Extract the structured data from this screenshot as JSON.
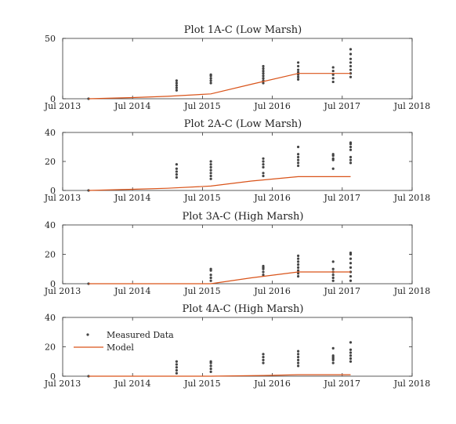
{
  "chart_data": [
    {
      "type": "scatter",
      "title": "Plot 1A-C (Low Marsh)",
      "x_ticks": [
        "Jul 2013",
        "Jul 2014",
        "Jul 2015",
        "Jul 2016",
        "Jul 2017",
        "Jul 2018"
      ],
      "ylim": [
        0,
        50
      ],
      "y_ticks": [
        "0",
        "50"
      ],
      "series": [
        {
          "kind": "measured",
          "color": "#444444",
          "points": [
            {
              "x": 2013.87,
              "y": [
                0
              ]
            },
            {
              "x": 2015.13,
              "y": [
                7,
                9,
                11,
                13,
                15
              ]
            },
            {
              "x": 2015.62,
              "y": [
                13,
                15,
                17,
                19,
                20
              ]
            },
            {
              "x": 2016.37,
              "y": [
                13,
                15,
                17,
                19,
                21,
                23,
                25,
                27
              ]
            },
            {
              "x": 2016.87,
              "y": [
                16,
                18,
                20,
                22,
                24,
                27,
                30
              ]
            },
            {
              "x": 2017.37,
              "y": [
                14,
                17,
                20,
                23,
                26
              ]
            },
            {
              "x": 2017.62,
              "y": [
                18,
                21,
                24,
                27,
                30,
                33,
                37,
                41
              ]
            }
          ]
        },
        {
          "kind": "model",
          "color": "#d95319",
          "x": [
            2013.87,
            2014.5,
            2015.0,
            2015.62,
            2016.2,
            2016.87,
            2017.3,
            2017.62
          ],
          "y": [
            0,
            1,
            2,
            4,
            12,
            21,
            21,
            21
          ]
        }
      ]
    },
    {
      "type": "scatter",
      "title": "Plot 2A-C (Low Marsh)",
      "x_ticks": [
        "Jul 2013",
        "Jul 2014",
        "Jul 2015",
        "Jul 2016",
        "Jul 2017",
        "Jul 2018"
      ],
      "ylim": [
        0,
        40
      ],
      "y_ticks": [
        "0",
        "20",
        "40"
      ],
      "series": [
        {
          "kind": "measured",
          "color": "#444444",
          "points": [
            {
              "x": 2013.87,
              "y": [
                0
              ]
            },
            {
              "x": 2015.13,
              "y": [
                9,
                11,
                13,
                15,
                18
              ]
            },
            {
              "x": 2015.62,
              "y": [
                8,
                10,
                12,
                14,
                16,
                18,
                20
              ]
            },
            {
              "x": 2016.37,
              "y": [
                10,
                12,
                16,
                18,
                20,
                22
              ]
            },
            {
              "x": 2016.87,
              "y": [
                17,
                19,
                21,
                23,
                25,
                30
              ]
            },
            {
              "x": 2017.37,
              "y": [
                15,
                21,
                22,
                24,
                25
              ]
            },
            {
              "x": 2017.62,
              "y": [
                19,
                21,
                23,
                28,
                30,
                32,
                33
              ]
            }
          ]
        },
        {
          "kind": "model",
          "color": "#d95319",
          "x": [
            2013.87,
            2014.5,
            2015.0,
            2015.62,
            2016.2,
            2016.87,
            2017.3,
            2017.62
          ],
          "y": [
            0,
            0.8,
            1.5,
            3,
            6.5,
            9.5,
            9.5,
            9.5
          ]
        }
      ]
    },
    {
      "type": "scatter",
      "title": "Plot 3A-C (High Marsh)",
      "x_ticks": [
        "Jul 2013",
        "Jul 2014",
        "Jul 2015",
        "Jul 2016",
        "Jul 2017",
        "Jul 2018"
      ],
      "ylim": [
        0,
        40
      ],
      "y_ticks": [
        "0",
        "20",
        "40"
      ],
      "series": [
        {
          "kind": "measured",
          "color": "#444444",
          "points": [
            {
              "x": 2013.87,
              "y": [
                0
              ]
            },
            {
              "x": 2015.62,
              "y": [
                2,
                4,
                6,
                9,
                10
              ]
            },
            {
              "x": 2016.37,
              "y": [
                6,
                8,
                10,
                11,
                12
              ]
            },
            {
              "x": 2016.87,
              "y": [
                5,
                7,
                9,
                11,
                13,
                15,
                17,
                19
              ]
            },
            {
              "x": 2017.37,
              "y": [
                2,
                4,
                6,
                8,
                10,
                15
              ]
            },
            {
              "x": 2017.62,
              "y": [
                2,
                5,
                8,
                11,
                14,
                17,
                20,
                21
              ]
            }
          ]
        },
        {
          "kind": "model",
          "color": "#d95319",
          "x": [
            2013.87,
            2015.0,
            2015.62,
            2016.2,
            2016.87,
            2017.3,
            2017.62
          ],
          "y": [
            0,
            0,
            0,
            4,
            8,
            8,
            8
          ]
        }
      ]
    },
    {
      "type": "scatter",
      "title": "Plot 4A-C (High Marsh)",
      "x_ticks": [
        "Jul 2013",
        "Jul 2014",
        "Jul 2015",
        "Jul 2016",
        "Jul 2017",
        "Jul 2018"
      ],
      "ylim": [
        0,
        40
      ],
      "y_ticks": [
        "0",
        "20",
        "40"
      ],
      "legend": {
        "position": "top-left",
        "measured_label": "Measured Data",
        "model_label": "Model"
      },
      "series": [
        {
          "kind": "measured",
          "color": "#444444",
          "points": [
            {
              "x": 2013.87,
              "y": [
                0
              ]
            },
            {
              "x": 2015.13,
              "y": [
                2,
                4,
                6,
                8,
                10
              ]
            },
            {
              "x": 2015.62,
              "y": [
                3,
                5,
                7,
                9,
                10
              ]
            },
            {
              "x": 2016.37,
              "y": [
                9,
                11,
                13,
                15
              ]
            },
            {
              "x": 2016.87,
              "y": [
                7,
                9,
                11,
                13,
                15,
                17
              ]
            },
            {
              "x": 2017.37,
              "y": [
                9,
                11,
                12,
                13,
                14,
                19
              ]
            },
            {
              "x": 2017.62,
              "y": [
                10,
                12,
                14,
                16,
                18,
                23
              ]
            }
          ]
        },
        {
          "kind": "model",
          "color": "#d95319",
          "x": [
            2013.87,
            2015.62,
            2016.37,
            2016.87,
            2017.62
          ],
          "y": [
            0,
            0,
            0.5,
            1,
            1
          ]
        }
      ]
    }
  ]
}
